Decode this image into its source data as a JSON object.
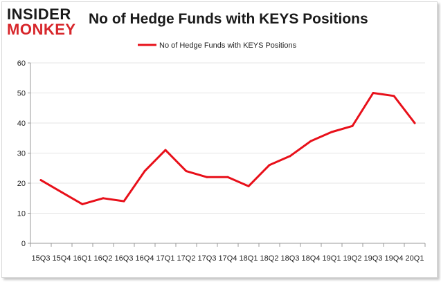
{
  "header": {
    "logo_top": "INSIDER",
    "logo_bottom": "MONKEY",
    "title": "No of Hedge Funds with KEYS Positions"
  },
  "colors": {
    "line": "#e8101a",
    "grid": "#e4e4e4",
    "axis": "#999999",
    "logo_red": "#d7262b"
  },
  "chart_data": {
    "type": "line",
    "title": "No of Hedge Funds with KEYS Positions",
    "xlabel": "",
    "ylabel": "",
    "ylim": [
      0,
      60
    ],
    "yticks": [
      0,
      10,
      20,
      30,
      40,
      50,
      60
    ],
    "grid": "horizontal",
    "legend_position": "top-center",
    "categories": [
      "15Q3",
      "15Q4",
      "16Q1",
      "16Q2",
      "16Q3",
      "16Q4",
      "17Q1",
      "17Q2",
      "17Q3",
      "17Q4",
      "18Q1",
      "18Q2",
      "18Q3",
      "18Q4",
      "19Q1",
      "19Q2",
      "19Q3",
      "19Q4",
      "20Q1"
    ],
    "x_tick_labels": [
      "15Q3",
      "15Q4",
      "16Q1",
      "16Q2",
      "16Q3",
      "16Q4",
      "17Q1",
      "17Q2",
      "17Q3",
      "17Q4",
      "18Q1",
      "18Q2",
      "18Q3",
      "18Q4",
      "19Q1",
      "19Q2",
      "19Q3",
      "19Q4",
      "20Q1"
    ],
    "series": [
      {
        "name": "No of Hedge Funds with KEYS Positions",
        "values": [
          21,
          17,
          13,
          15,
          14,
          24,
          31,
          24,
          22,
          22,
          19,
          26,
          29,
          34,
          37,
          39,
          50,
          49,
          40
        ]
      }
    ]
  }
}
